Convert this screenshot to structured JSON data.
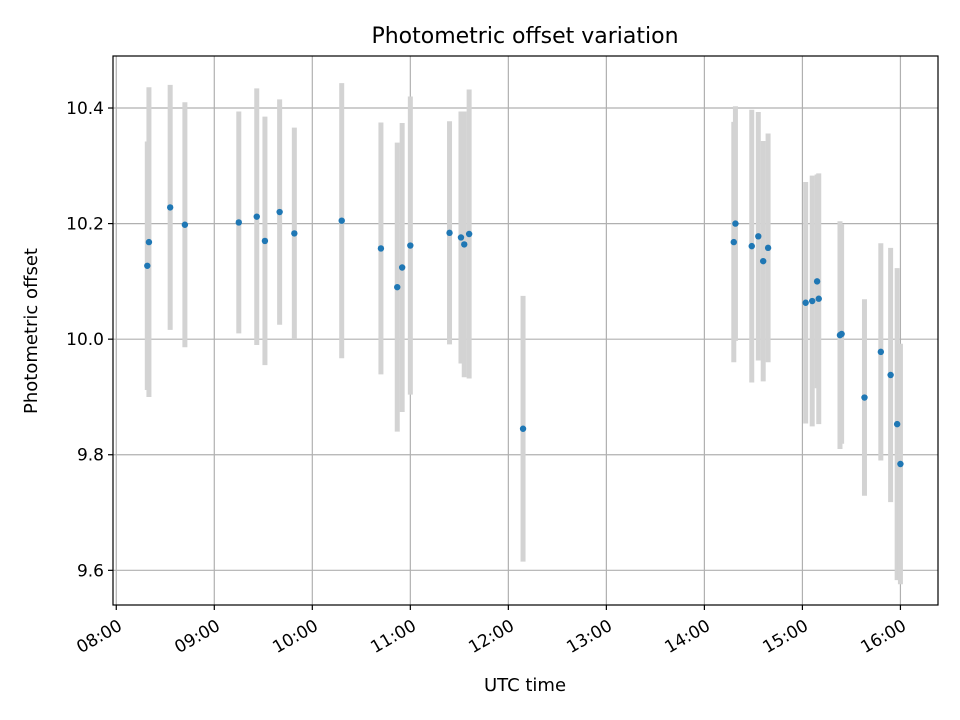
{
  "chart_data": {
    "type": "scatter",
    "title": "Photometric offset variation",
    "xlabel": "UTC time",
    "ylabel": "Photometric offset",
    "xlim": [
      "07:58",
      "16:23"
    ],
    "ylim": [
      9.54,
      10.49
    ],
    "x_ticks": [
      "08:00",
      "09:00",
      "10:00",
      "11:00",
      "12:00",
      "13:00",
      "14:00",
      "15:00",
      "16:00"
    ],
    "y_ticks": [
      "9.6",
      "9.8",
      "10.0",
      "10.2",
      "10.4"
    ],
    "grid": true,
    "colors": {
      "point": "#1f77b4",
      "errorbar": "#d3d3d3",
      "grid": "#b0b0b0"
    },
    "points": [
      {
        "t": "08:19",
        "y": 10.127,
        "err": 0.215
      },
      {
        "t": "08:20",
        "y": 10.168,
        "err": 0.268
      },
      {
        "t": "08:33",
        "y": 10.228,
        "err": 0.212
      },
      {
        "t": "08:42",
        "y": 10.198,
        "err": 0.212
      },
      {
        "t": "09:15",
        "y": 10.202,
        "err": 0.192
      },
      {
        "t": "09:26",
        "y": 10.212,
        "err": 0.222
      },
      {
        "t": "09:31",
        "y": 10.17,
        "err": 0.215
      },
      {
        "t": "09:40",
        "y": 10.22,
        "err": 0.195
      },
      {
        "t": "09:49",
        "y": 10.183,
        "err": 0.183
      },
      {
        "t": "10:18",
        "y": 10.205,
        "err": 0.238
      },
      {
        "t": "10:42",
        "y": 10.157,
        "err": 0.218
      },
      {
        "t": "10:52",
        "y": 10.09,
        "err": 0.25
      },
      {
        "t": "10:55",
        "y": 10.124,
        "err": 0.25
      },
      {
        "t": "11:00",
        "y": 10.162,
        "err": 0.258
      },
      {
        "t": "11:24",
        "y": 10.184,
        "err": 0.193
      },
      {
        "t": "11:31",
        "y": 10.176,
        "err": 0.218
      },
      {
        "t": "11:33",
        "y": 10.164,
        "err": 0.23
      },
      {
        "t": "11:36",
        "y": 10.182,
        "err": 0.25
      },
      {
        "t": "12:09",
        "y": 9.845,
        "err": 0.23
      },
      {
        "t": "14:18",
        "y": 10.168,
        "err": 0.208
      },
      {
        "t": "14:19",
        "y": 10.2,
        "err": 0.203
      },
      {
        "t": "14:29",
        "y": 10.161,
        "err": 0.236
      },
      {
        "t": "14:33",
        "y": 10.178,
        "err": 0.215
      },
      {
        "t": "14:36",
        "y": 10.135,
        "err": 0.208
      },
      {
        "t": "14:39",
        "y": 10.158,
        "err": 0.198
      },
      {
        "t": "15:02",
        "y": 10.063,
        "err": 0.209
      },
      {
        "t": "15:06",
        "y": 10.066,
        "err": 0.217
      },
      {
        "t": "15:09",
        "y": 10.1,
        "err": 0.185
      },
      {
        "t": "15:10",
        "y": 10.07,
        "err": 0.217
      },
      {
        "t": "15:23",
        "y": 10.007,
        "err": 0.197
      },
      {
        "t": "15:24",
        "y": 10.009,
        "err": 0.19
      },
      {
        "t": "15:38",
        "y": 9.899,
        "err": 0.17
      },
      {
        "t": "15:48",
        "y": 9.978,
        "err": 0.188
      },
      {
        "t": "15:54",
        "y": 9.938,
        "err": 0.22
      },
      {
        "t": "15:58",
        "y": 9.853,
        "err": 0.27
      },
      {
        "t": "16:00",
        "y": 9.784,
        "err": 0.208
      }
    ]
  }
}
